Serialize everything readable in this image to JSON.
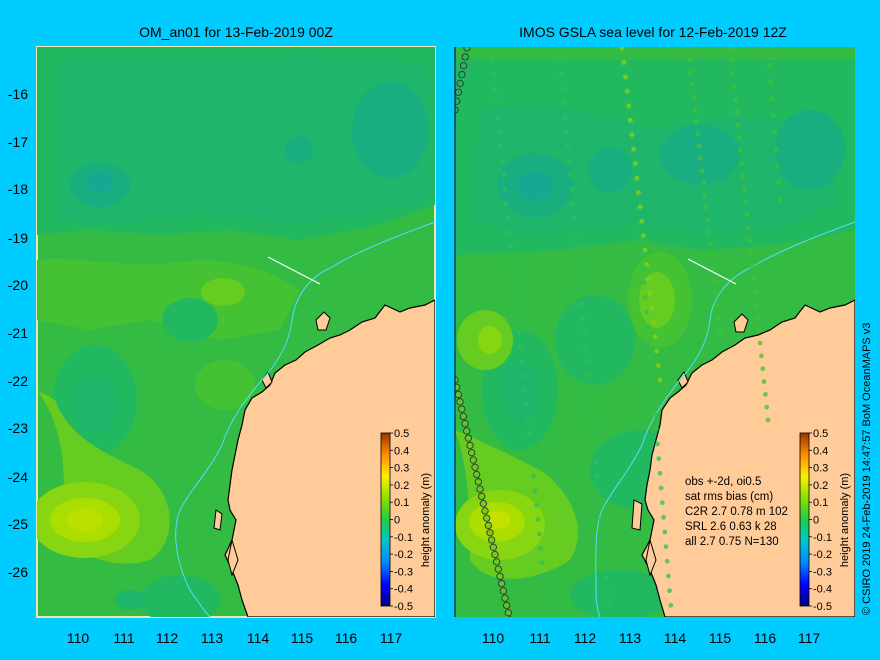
{
  "left_map": {
    "title": "OM_an01 for 13-Feb-2019 00Z",
    "x_ticks": [
      "110",
      "111",
      "112",
      "113",
      "114",
      "115",
      "116",
      "117"
    ],
    "y_ticks": [
      "-16",
      "-17",
      "-18",
      "-19",
      "-20",
      "-21",
      "-22",
      "-23",
      "-24",
      "-25",
      "-26"
    ]
  },
  "right_map": {
    "title": "IMOS GSLA sea level  for 12-Feb-2019 12Z",
    "x_ticks": [
      "110",
      "111",
      "112",
      "113",
      "114",
      "115",
      "116",
      "117"
    ],
    "stats": {
      "line1": "obs +-2d, oi0.5",
      "line2": "sat rms bias (cm)",
      "line3": "C2R   2.7  0.78  m 102",
      "line4": "SRL    2.6  0.63  k 28",
      "line5": "all    2.7  0.75  N=130"
    }
  },
  "colorbar": {
    "label": "height anomaly (m)",
    "ticks": [
      "0.5",
      "0.4",
      "0.3",
      "0.2",
      "0.1",
      "0",
      "-0.1",
      "-0.2",
      "-0.3",
      "-0.4",
      "-0.5"
    ],
    "range": [
      -0.5,
      0.5
    ]
  },
  "credit": "© CSIRO 2019   24-Feb-2019 14:47:57 BoM OceanMAPS v3",
  "colors": {
    "background": "#00ccff",
    "land": "#ffcc99",
    "ocean_base": "#33bb44",
    "coast": "#000000",
    "shelf_contour": "#55ddff"
  }
}
